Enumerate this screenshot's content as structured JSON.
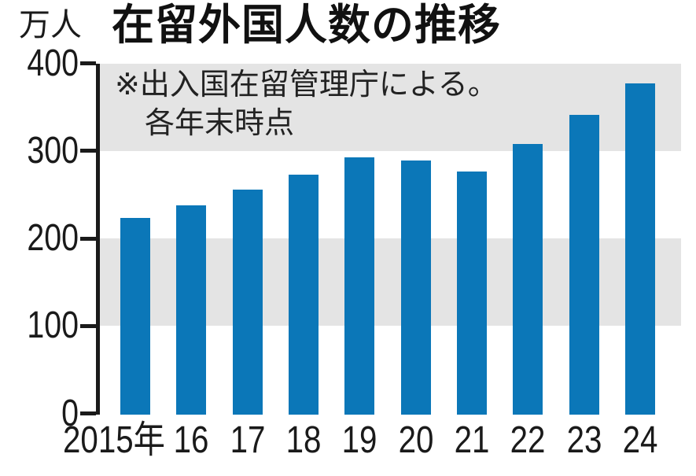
{
  "header": {
    "unit_label": "万人",
    "title": "在留外国人数の推移",
    "note_line1": "※出入国在留管理庁による。",
    "note_line2": "各年末時点"
  },
  "chart_data": {
    "type": "bar",
    "title": "在留外国人数の推移",
    "ylabel": "万人",
    "xlabel": "",
    "note": "※出入国在留管理庁による。各年末時点",
    "categories": [
      "2015年",
      "16",
      "17",
      "18",
      "19",
      "20",
      "21",
      "22",
      "23",
      "24"
    ],
    "values": [
      223,
      238,
      256,
      273,
      293,
      289,
      276,
      308,
      341,
      377
    ],
    "series_name": "在留外国人数",
    "ylim": [
      0,
      400
    ],
    "yticks": [
      0,
      100,
      200,
      300,
      400
    ],
    "legend": "none",
    "gridlines": "alternating horizontal gray bands between 100-200 and 300-400",
    "colors": {
      "bar": "#0b77b8",
      "band": "#e4e4e4",
      "text": "#1a1a1a"
    }
  }
}
